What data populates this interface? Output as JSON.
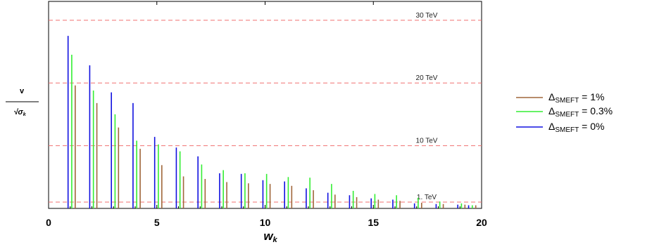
{
  "chart_data": {
    "type": "bar",
    "xlabel": "w",
    "xlabel_sub": "k",
    "ylabel_num": "v",
    "ylabel_den": "√σ",
    "ylabel_den_sub": "k",
    "xlim": [
      0,
      20
    ],
    "ylim": [
      0,
      33
    ],
    "xticks": [
      "0",
      "5",
      "10",
      "15",
      "20"
    ],
    "reference_lines": [
      {
        "value": 30,
        "label": "30 TeV"
      },
      {
        "value": 20,
        "label": "20 TeV"
      },
      {
        "value": 10,
        "label": "10 TeV"
      },
      {
        "value": 1,
        "label": "1. TeV"
      }
    ],
    "series": [
      {
        "name": "Δ",
        "name_sub": "SMEFT",
        "name_rest": " = 1%",
        "color": "#a0673a",
        "offset": 0.33,
        "values": [
          19.6,
          16.8,
          12.9,
          9.5,
          6.9,
          5.1,
          4.7,
          4.2,
          4.0,
          3.9,
          3.6,
          2.9,
          2.2,
          1.8,
          1.4,
          1.2,
          0.9,
          0.7,
          0.6,
          0.5
        ]
      },
      {
        "name": "Δ",
        "name_sub": "SMEFT",
        "name_rest": " = 0.3%",
        "color": "#33ee33",
        "offset": 0.17,
        "values": [
          24.5,
          18.8,
          15.0,
          10.8,
          10.2,
          9.1,
          7.0,
          6.1,
          5.6,
          5.5,
          5.0,
          4.9,
          3.9,
          2.8,
          2.3,
          2.1,
          1.7,
          1.1,
          0.8,
          0.5
        ]
      },
      {
        "name": "Δ",
        "name_sub": "SMEFT",
        "name_rest": " = 0%",
        "color": "#1010e0",
        "offset": 0.0,
        "values": [
          27.5,
          22.8,
          18.5,
          16.8,
          11.4,
          9.7,
          8.3,
          5.6,
          5.5,
          4.5,
          4.3,
          3.2,
          2.5,
          2.1,
          1.6,
          1.4,
          0.8,
          0.7,
          0.6,
          0.5
        ]
      }
    ],
    "x_positions": [
      0.9,
      1.9,
      2.9,
      3.9,
      4.9,
      5.9,
      6.9,
      7.9,
      8.9,
      9.9,
      10.9,
      11.9,
      12.9,
      13.9,
      14.9,
      15.9,
      16.9,
      17.9,
      18.9,
      19.4
    ]
  }
}
